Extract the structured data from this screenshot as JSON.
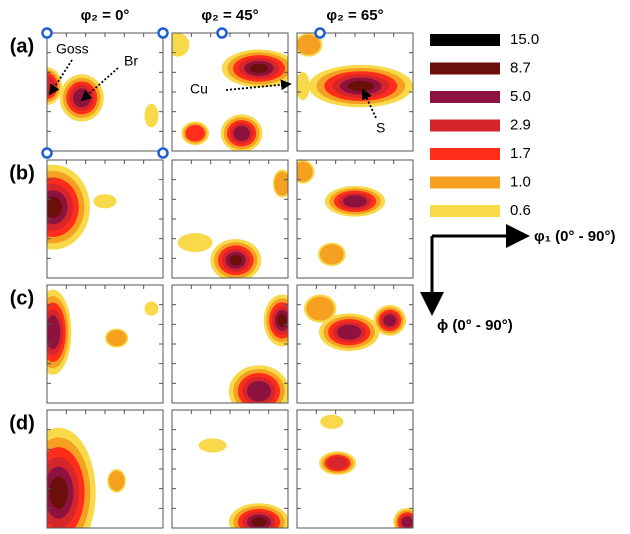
{
  "columns": [
    "φ₂ = 0°",
    "φ₂ = 45°",
    "φ₂ = 65°"
  ],
  "rows": [
    "(a)",
    "(b)",
    "(c)",
    "(d)"
  ],
  "legend": [
    {
      "label": "15.0",
      "color": "#000000"
    },
    {
      "label": "8.7",
      "color": "#6b0f0a"
    },
    {
      "label": "5.0",
      "color": "#8e1240"
    },
    {
      "label": "2.9",
      "color": "#d7262b"
    },
    {
      "label": "1.7",
      "color": "#ff2d1a"
    },
    {
      "label": "1.0",
      "color": "#f5a020"
    },
    {
      "label": "0.6",
      "color": "#f7d94a"
    }
  ],
  "annotations": [
    "Goss",
    "Br",
    "Cu",
    "S"
  ],
  "axes": {
    "phi1": "φ₁ (0° - 90°)",
    "Phi": "ϕ (0° - 90°)"
  }
}
